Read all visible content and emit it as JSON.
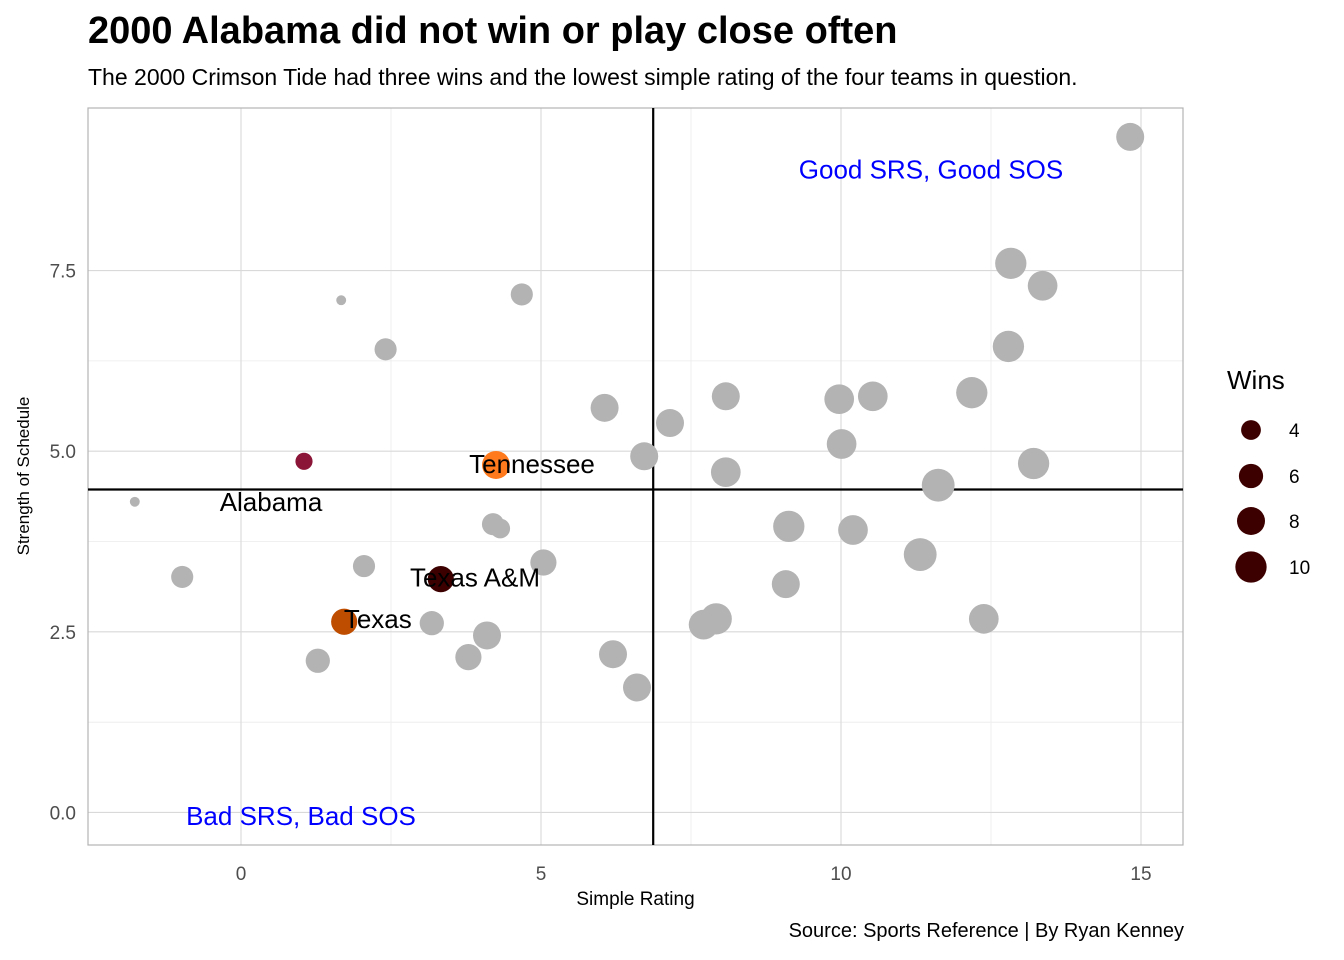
{
  "chart_data": {
    "type": "scatter",
    "title": "2000 Alabama did not win or play close often",
    "subtitle": "The 2000 Crimson Tide had three wins and the lowest simple rating of the four teams in question.",
    "caption": "Source: Sports Reference | By Ryan Kenney",
    "xlabel": "Simple Rating",
    "ylabel": "Strength of Schedule",
    "xlim": [
      -2.55,
      15.7
    ],
    "ylim": [
      -0.45,
      9.75
    ],
    "x_ticks": [
      0,
      5,
      10,
      15
    ],
    "x_tick_labels": [
      "0",
      "5",
      "10",
      "15"
    ],
    "y_ticks": [
      0,
      2.5,
      5,
      7.5
    ],
    "y_tick_labels": [
      "0.0",
      "2.5",
      "5.0",
      "7.5"
    ],
    "grid": true,
    "reference_lines": {
      "x": 6.87,
      "y": 4.47
    },
    "legend": {
      "title": "Wins",
      "position": "right",
      "entries": [
        {
          "label": "4",
          "wins": 4
        },
        {
          "label": "6",
          "wins": 6
        },
        {
          "label": "8",
          "wins": 8
        },
        {
          "label": "10",
          "wins": 10
        }
      ],
      "color": "#3d0000"
    },
    "annotations": [
      {
        "text": "Good SRS, Good SOS",
        "x": 11.5,
        "y": 8.9,
        "color": "#0000ff"
      },
      {
        "text": "Bad SRS, Bad SOS",
        "x": 1.0,
        "y": -0.05,
        "color": "#0000ff"
      }
    ],
    "highlighted": [
      {
        "team": "Alabama",
        "x": 1.05,
        "y": 4.86,
        "wins": 3,
        "color": "#8b1538",
        "label_x": 0.5,
        "label_y": 4.3
      },
      {
        "team": "Tennessee",
        "x": 4.25,
        "y": 4.81,
        "wins": 8,
        "color": "#ff7a1c",
        "label_x": 4.85,
        "label_y": 4.82
      },
      {
        "team": "Texas A&M",
        "x": 3.33,
        "y": 3.23,
        "wins": 7,
        "color": "#3d0000",
        "label_x": 3.9,
        "label_y": 3.25
      },
      {
        "team": "Texas",
        "x": 1.72,
        "y": 2.64,
        "wins": 7,
        "color": "#bf4d00",
        "label_x": 2.28,
        "label_y": 2.68
      }
    ],
    "points": [
      {
        "x": -1.77,
        "y": 4.3,
        "wins": 1
      },
      {
        "x": 1.67,
        "y": 7.09,
        "wins": 1
      },
      {
        "x": -0.98,
        "y": 3.26,
        "wins": 5
      },
      {
        "x": 2.41,
        "y": 6.41,
        "wins": 5
      },
      {
        "x": 4.68,
        "y": 7.17,
        "wins": 5
      },
      {
        "x": 2.05,
        "y": 3.41,
        "wins": 5
      },
      {
        "x": 1.28,
        "y": 2.1,
        "wins": 6
      },
      {
        "x": 3.18,
        "y": 2.62,
        "wins": 6
      },
      {
        "x": 4.2,
        "y": 3.99,
        "wins": 5
      },
      {
        "x": 4.32,
        "y": 3.93,
        "wins": 4
      },
      {
        "x": 3.79,
        "y": 2.15,
        "wins": 7
      },
      {
        "x": 4.1,
        "y": 2.45,
        "wins": 8
      },
      {
        "x": 5.04,
        "y": 3.46,
        "wins": 7
      },
      {
        "x": 6.06,
        "y": 5.6,
        "wins": 8
      },
      {
        "x": 6.2,
        "y": 2.19,
        "wins": 8
      },
      {
        "x": 6.6,
        "y": 1.73,
        "wins": 8
      },
      {
        "x": 6.72,
        "y": 4.93,
        "wins": 8
      },
      {
        "x": 7.15,
        "y": 5.39,
        "wins": 8
      },
      {
        "x": 7.71,
        "y": 2.6,
        "wins": 9
      },
      {
        "x": 7.92,
        "y": 2.68,
        "wins": 10
      },
      {
        "x": 8.08,
        "y": 5.76,
        "wins": 8
      },
      {
        "x": 8.08,
        "y": 4.71,
        "wins": 9
      },
      {
        "x": 9.08,
        "y": 3.16,
        "wins": 8
      },
      {
        "x": 9.13,
        "y": 3.96,
        "wins": 10
      },
      {
        "x": 9.97,
        "y": 5.72,
        "wins": 9
      },
      {
        "x": 10.01,
        "y": 5.1,
        "wins": 9
      },
      {
        "x": 10.2,
        "y": 3.91,
        "wins": 9
      },
      {
        "x": 10.53,
        "y": 5.76,
        "wins": 9
      },
      {
        "x": 11.32,
        "y": 3.57,
        "wins": 11
      },
      {
        "x": 11.62,
        "y": 4.53,
        "wins": 11
      },
      {
        "x": 12.18,
        "y": 5.81,
        "wins": 10
      },
      {
        "x": 12.38,
        "y": 2.68,
        "wins": 9
      },
      {
        "x": 12.79,
        "y": 6.45,
        "wins": 10
      },
      {
        "x": 12.83,
        "y": 7.6,
        "wins": 10
      },
      {
        "x": 13.21,
        "y": 4.83,
        "wins": 10
      },
      {
        "x": 13.36,
        "y": 7.29,
        "wins": 9
      },
      {
        "x": 14.82,
        "y": 9.35,
        "wins": 8
      }
    ],
    "point_color": "#b3b3b3"
  }
}
